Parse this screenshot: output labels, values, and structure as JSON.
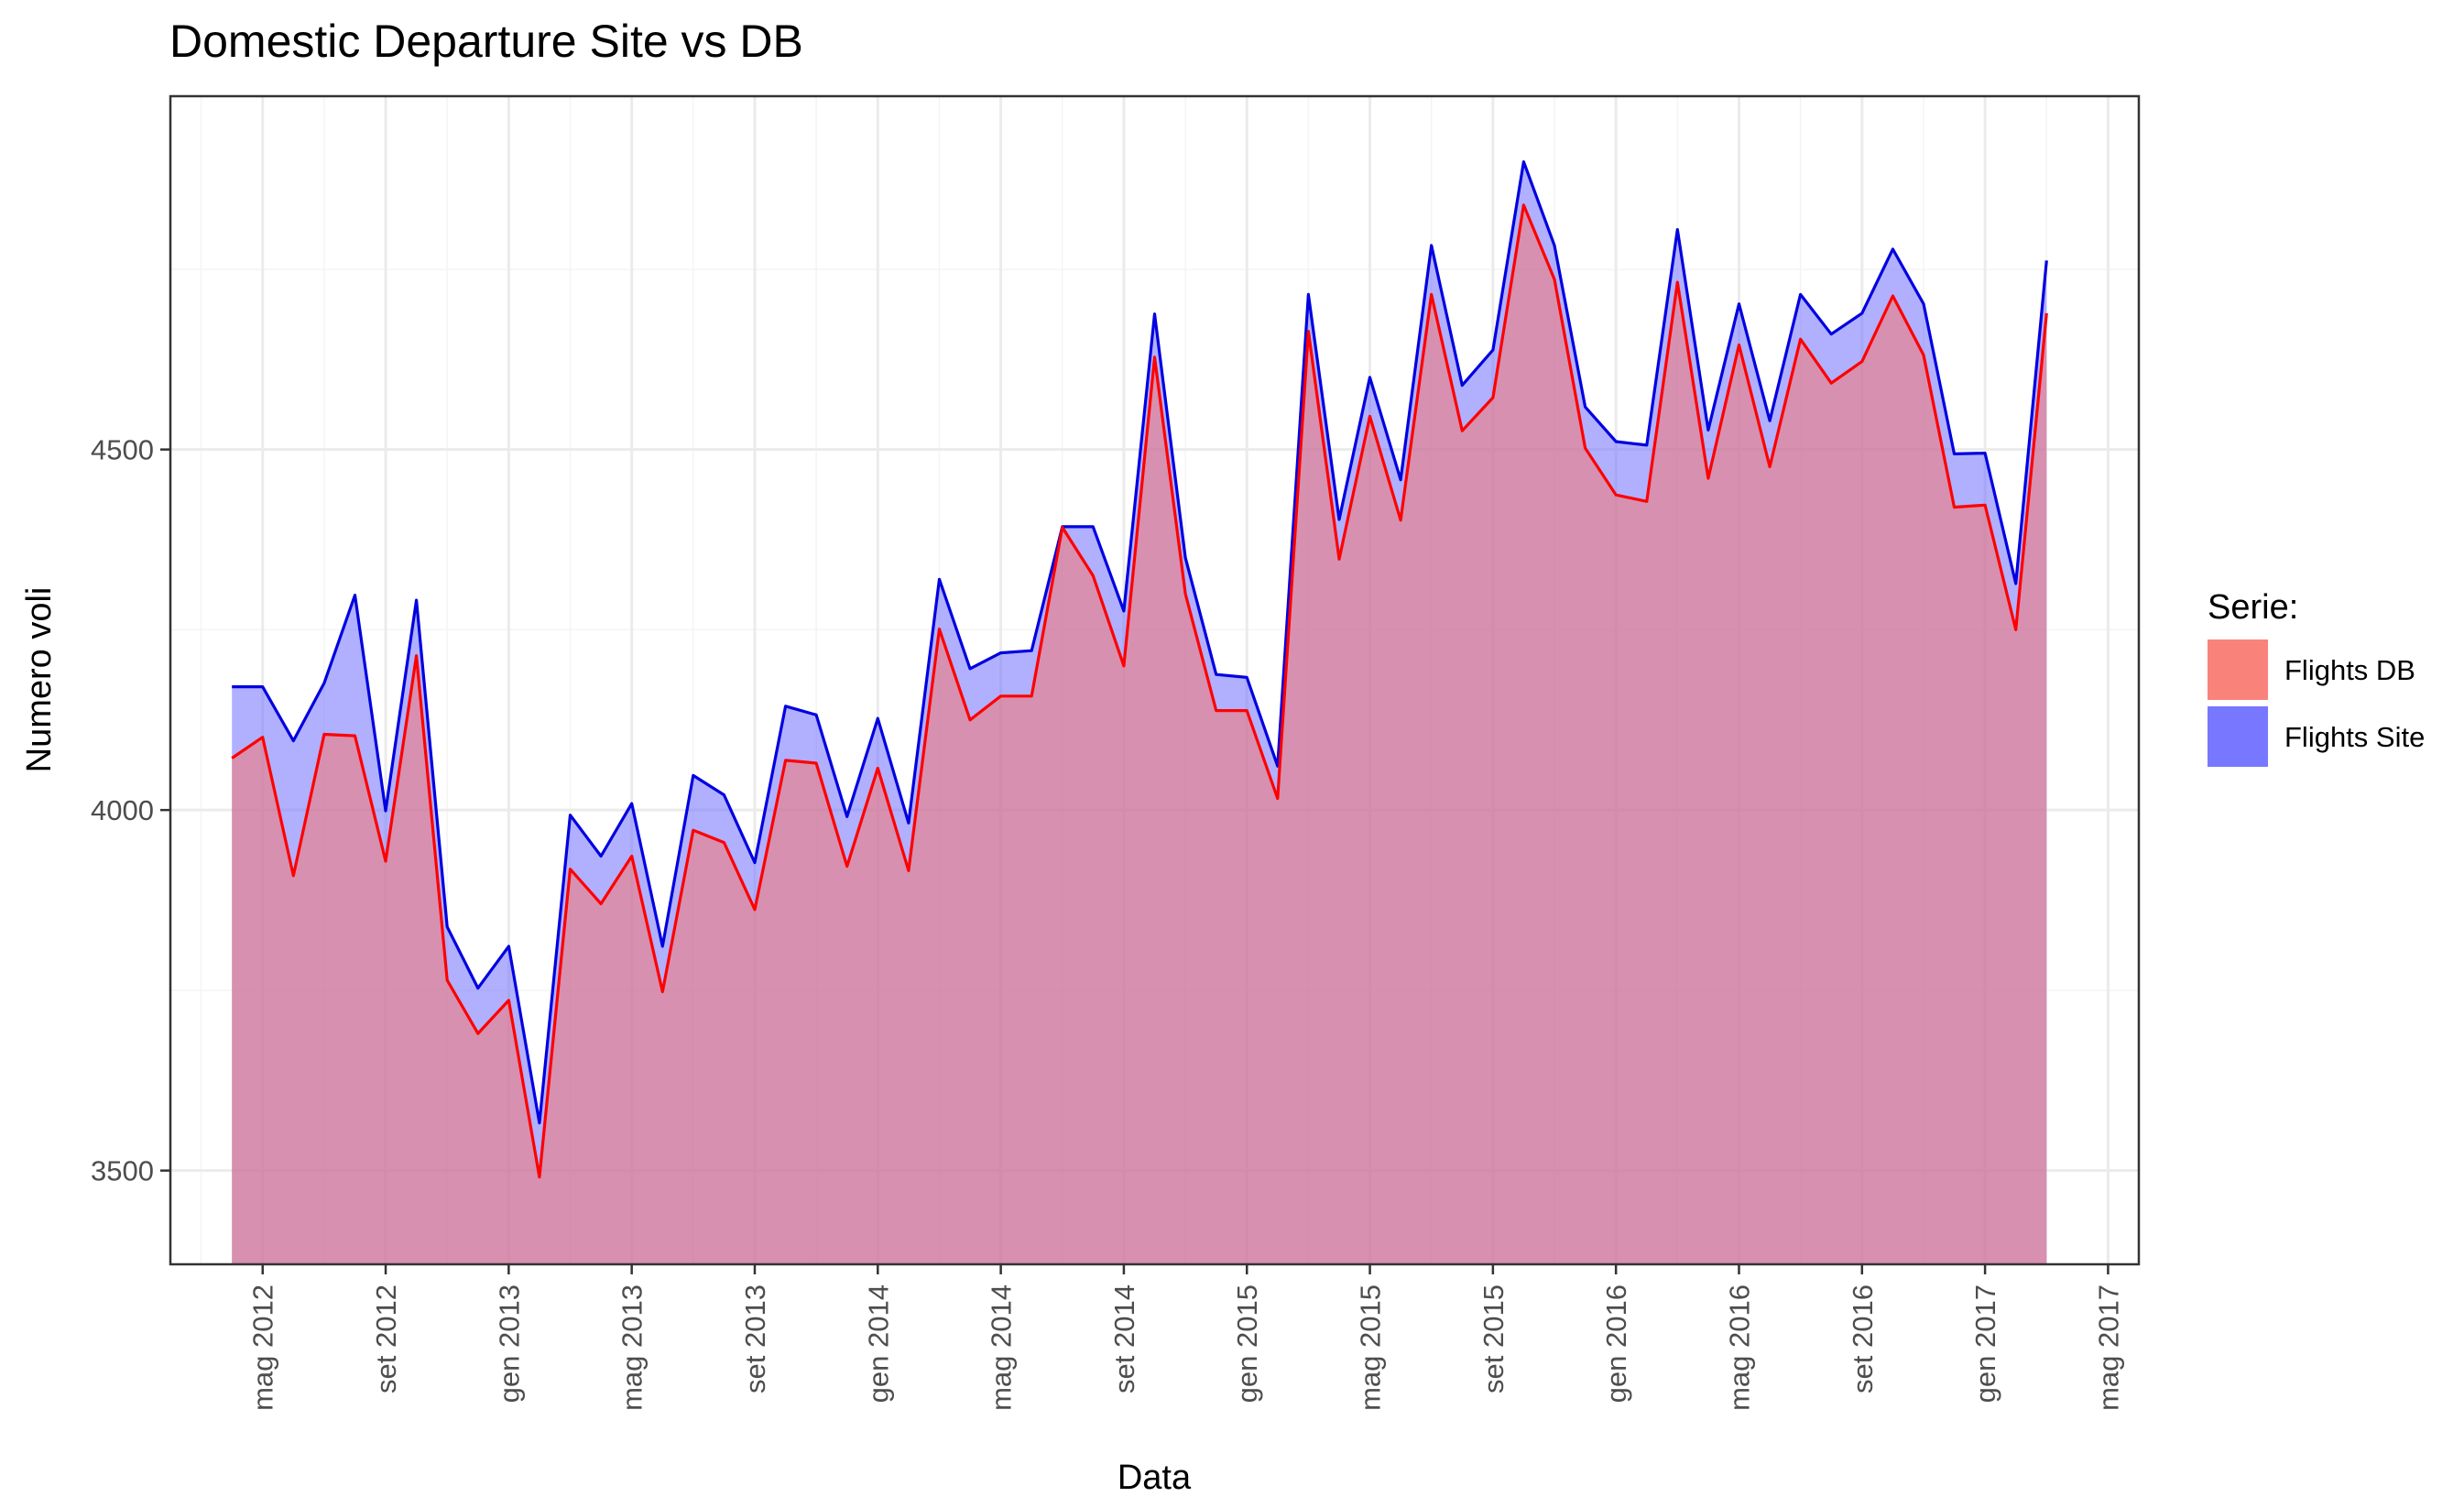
{
  "chart_data": {
    "type": "area",
    "title": "Domestic Departure Site vs DB",
    "xlabel": "Data",
    "ylabel": "Numero voli",
    "ylim": [
      3370,
      4990
    ],
    "xlim": [
      "2012-02-01",
      "2017-06-01"
    ],
    "grid": true,
    "legend_position": "right",
    "legend_title": "Serie:",
    "x_ticks": [
      {
        "value": "2012-05",
        "label": "mag 2012"
      },
      {
        "value": "2012-09",
        "label": "set 2012"
      },
      {
        "value": "2013-01",
        "label": "gen 2013"
      },
      {
        "value": "2013-05",
        "label": "mag 2013"
      },
      {
        "value": "2013-09",
        "label": "set 2013"
      },
      {
        "value": "2014-01",
        "label": "gen 2014"
      },
      {
        "value": "2014-05",
        "label": "mag 2014"
      },
      {
        "value": "2014-09",
        "label": "set 2014"
      },
      {
        "value": "2015-01",
        "label": "gen 2015"
      },
      {
        "value": "2015-05",
        "label": "mag 2015"
      },
      {
        "value": "2015-09",
        "label": "set 2015"
      },
      {
        "value": "2016-01",
        "label": "gen 2016"
      },
      {
        "value": "2016-05",
        "label": "mag 2016"
      },
      {
        "value": "2016-09",
        "label": "set 2016"
      },
      {
        "value": "2017-01",
        "label": "gen 2017"
      },
      {
        "value": "2017-05",
        "label": "mag 2017"
      }
    ],
    "y_ticks": [
      3500,
      4000,
      4500
    ],
    "x": [
      "2012-04",
      "2012-05",
      "2012-06",
      "2012-07",
      "2012-08",
      "2012-09",
      "2012-10",
      "2012-11",
      "2012-12",
      "2013-01",
      "2013-02",
      "2013-03",
      "2013-04",
      "2013-05",
      "2013-06",
      "2013-07",
      "2013-08",
      "2013-09",
      "2013-10",
      "2013-11",
      "2013-12",
      "2014-01",
      "2014-02",
      "2014-03",
      "2014-04",
      "2014-05",
      "2014-06",
      "2014-07",
      "2014-08",
      "2014-09",
      "2014-10",
      "2014-11",
      "2014-12",
      "2015-01",
      "2015-02",
      "2015-03",
      "2015-04",
      "2015-05",
      "2015-06",
      "2015-07",
      "2015-08",
      "2015-09",
      "2015-10",
      "2015-11",
      "2015-12",
      "2016-01",
      "2016-02",
      "2016-03",
      "2016-04",
      "2016-05",
      "2016-06",
      "2016-07",
      "2016-08",
      "2016-09",
      "2016-10",
      "2016-11",
      "2016-12",
      "2017-01",
      "2017-02",
      "2017-03"
    ],
    "series": [
      {
        "name": "Flights DB",
        "fill_color": "#f8766d",
        "line_color": "#ff0000",
        "values": [
          4072,
          4101,
          3909,
          4105,
          4103,
          3929,
          4214,
          3764,
          3690,
          3736,
          3491,
          3918,
          3870,
          3936,
          3748,
          3972,
          3955,
          3862,
          4069,
          4065,
          3922,
          4058,
          3916,
          4251,
          4125,
          4158,
          4158,
          4392,
          4325,
          4200,
          4628,
          4300,
          4138,
          4138,
          4016,
          4664,
          4348,
          4546,
          4402,
          4715,
          4526,
          4572,
          4839,
          4736,
          4502,
          4437,
          4428,
          4732,
          4460,
          4645,
          4476,
          4653,
          4592,
          4622,
          4713,
          4631,
          4420,
          4423,
          4250,
          4689
        ]
      },
      {
        "name": "Flights Site",
        "fill_color": "#7070ff",
        "line_color": "#0000e0",
        "values": [
          4171,
          4171,
          4096,
          4176,
          4298,
          3999,
          4291,
          3838,
          3753,
          3811,
          3566,
          3993,
          3936,
          4009,
          3811,
          4048,
          4021,
          3927,
          4144,
          4132,
          3991,
          4127,
          3982,
          4320,
          4196,
          4218,
          4221,
          4393,
          4393,
          4276,
          4688,
          4350,
          4188,
          4184,
          4061,
          4715,
          4403,
          4600,
          4458,
          4783,
          4589,
          4638,
          4899,
          4783,
          4559,
          4511,
          4506,
          4805,
          4527,
          4702,
          4540,
          4715,
          4660,
          4689,
          4778,
          4702,
          4494,
          4495,
          4314,
          4762
        ]
      }
    ]
  }
}
